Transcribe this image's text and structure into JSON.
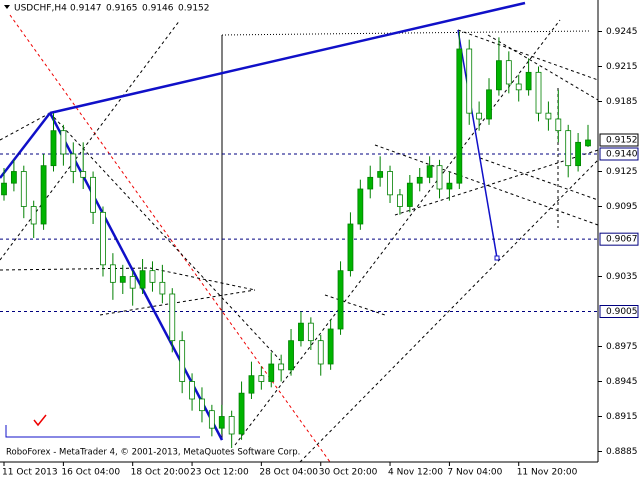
{
  "chart_data": {
    "type": "candlestick",
    "header": {
      "symbol": "USDCHF,H4",
      "values": [
        0.9147,
        0.9165,
        0.9146,
        0.9152
      ]
    },
    "footer": "RoboForex - MetaTrader 4, © 2001-2013, MetaQuotes Software Corp.",
    "categories": [
      "11 Oct 2013",
      null,
      null,
      null,
      null,
      null,
      "16 Oct 04:00",
      null,
      null,
      null,
      null,
      null,
      null,
      "18 Oct 20:00",
      null,
      null,
      null,
      null,
      null,
      "23 Oct 12:00",
      null,
      null,
      null,
      null,
      null,
      null,
      "28 Oct 04:00",
      null,
      null,
      null,
      null,
      null,
      "30 Oct 20:00",
      null,
      null,
      null,
      null,
      null,
      null,
      "4 Nov 12:00",
      null,
      null,
      null,
      null,
      null,
      "7 Nov 04:00",
      null,
      null,
      null,
      null,
      null,
      null,
      "11 Nov 20:00",
      null,
      null,
      null,
      null,
      null,
      null,
      null
    ],
    "ohlc": [
      [
        0.9105,
        0.9128,
        0.91,
        0.9115
      ],
      [
        0.9115,
        0.9135,
        0.9108,
        0.9125
      ],
      [
        0.9125,
        0.913,
        0.9085,
        0.9095
      ],
      [
        0.9095,
        0.91,
        0.9068,
        0.908
      ],
      [
        0.908,
        0.914,
        0.9075,
        0.913
      ],
      [
        0.913,
        0.9175,
        0.9125,
        0.916
      ],
      [
        0.916,
        0.9165,
        0.913,
        0.914
      ],
      [
        0.914,
        0.915,
        0.9115,
        0.9125
      ],
      [
        0.9125,
        0.915,
        0.911,
        0.912
      ],
      [
        0.912,
        0.9125,
        0.908,
        0.909
      ],
      [
        0.909,
        0.9095,
        0.9035,
        0.9045
      ],
      [
        0.9045,
        0.9055,
        0.9015,
        0.903
      ],
      [
        0.903,
        0.9045,
        0.902,
        0.9035
      ],
      [
        0.9035,
        0.904,
        0.901,
        0.9025
      ],
      [
        0.9025,
        0.905,
        0.902,
        0.904
      ],
      [
        0.904,
        0.9048,
        0.9022,
        0.903
      ],
      [
        0.903,
        0.9045,
        0.9012,
        0.902
      ],
      [
        0.902,
        0.9025,
        0.897,
        0.898
      ],
      [
        0.898,
        0.8988,
        0.8935,
        0.8945
      ],
      [
        0.8945,
        0.8952,
        0.892,
        0.893
      ],
      [
        0.893,
        0.894,
        0.891,
        0.892
      ],
      [
        0.892,
        0.8925,
        0.8898,
        0.8905
      ],
      [
        0.8905,
        0.8925,
        0.89,
        0.8915
      ],
      [
        0.8915,
        0.892,
        0.8888,
        0.89
      ],
      [
        0.89,
        0.8945,
        0.8895,
        0.8935
      ],
      [
        0.8935,
        0.8962,
        0.893,
        0.895
      ],
      [
        0.895,
        0.8958,
        0.8938,
        0.8945
      ],
      [
        0.8945,
        0.897,
        0.894,
        0.896
      ],
      [
        0.896,
        0.8968,
        0.8945,
        0.8955
      ],
      [
        0.8955,
        0.899,
        0.895,
        0.898
      ],
      [
        0.898,
        0.9005,
        0.8975,
        0.8995
      ],
      [
        0.8995,
        0.9,
        0.8972,
        0.898
      ],
      [
        0.898,
        0.8985,
        0.895,
        0.896
      ],
      [
        0.896,
        0.8998,
        0.8955,
        0.899
      ],
      [
        0.899,
        0.9048,
        0.8985,
        0.904
      ],
      [
        0.904,
        0.909,
        0.9035,
        0.908
      ],
      [
        0.908,
        0.9118,
        0.9075,
        0.911
      ],
      [
        0.911,
        0.913,
        0.9102,
        0.912
      ],
      [
        0.912,
        0.9138,
        0.9112,
        0.9125
      ],
      [
        0.9125,
        0.913,
        0.9098,
        0.9105
      ],
      [
        0.9105,
        0.911,
        0.9088,
        0.9095
      ],
      [
        0.9095,
        0.9122,
        0.909,
        0.9115
      ],
      [
        0.9115,
        0.9128,
        0.9108,
        0.912
      ],
      [
        0.912,
        0.9138,
        0.9115,
        0.913
      ],
      [
        0.913,
        0.9135,
        0.9102,
        0.911
      ],
      [
        0.911,
        0.9125,
        0.91,
        0.9115
      ],
      [
        0.9115,
        0.9245,
        0.911,
        0.923
      ],
      [
        0.923,
        0.9238,
        0.9165,
        0.9175
      ],
      [
        0.9175,
        0.9185,
        0.916,
        0.917
      ],
      [
        0.917,
        0.9205,
        0.9165,
        0.9195
      ],
      [
        0.9195,
        0.924,
        0.919,
        0.922
      ],
      [
        0.922,
        0.9228,
        0.9192,
        0.92
      ],
      [
        0.92,
        0.9208,
        0.9185,
        0.9195
      ],
      [
        0.9195,
        0.9222,
        0.919,
        0.921
      ],
      [
        0.921,
        0.9215,
        0.9168,
        0.9175
      ],
      [
        0.9175,
        0.9185,
        0.916,
        0.917
      ],
      [
        0.917,
        0.9195,
        0.915,
        0.916
      ],
      [
        0.916,
        0.9165,
        0.912,
        0.913
      ],
      [
        0.913,
        0.9158,
        0.9125,
        0.915
      ],
      [
        0.9147,
        0.9165,
        0.9146,
        0.9152
      ]
    ],
    "up_color": "#00b400",
    "down_color": "#ffffff",
    "wick_color": "#008000",
    "ylim": [
      0.8876,
      0.9272
    ],
    "yticks": [
      0.9245,
      0.9215,
      0.9185,
      0.9125,
      0.9095,
      0.9035,
      0.8975,
      0.8945,
      0.8915,
      0.8885
    ],
    "levels": [
      {
        "value": 0.914,
        "label": "0.9140"
      },
      {
        "value": 0.9067,
        "label": "0.9067"
      },
      {
        "value": 0.9005,
        "label": "0.9005"
      }
    ],
    "level_color": "#000080"
  }
}
